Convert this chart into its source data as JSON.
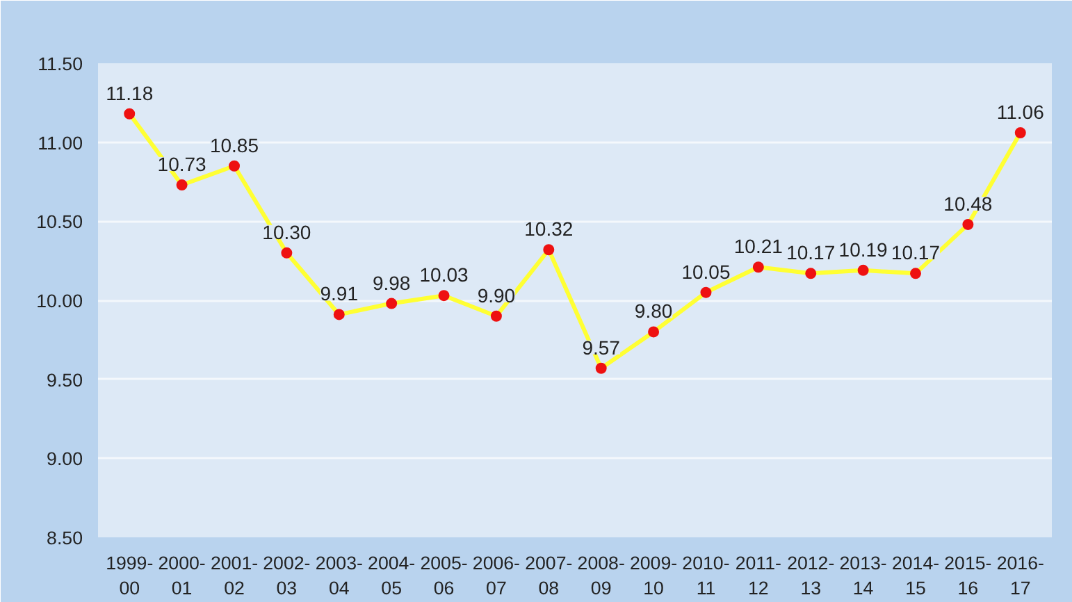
{
  "chart_data": {
    "type": "line",
    "categories": [
      "1999-00",
      "2000-01",
      "2001-02",
      "2002-03",
      "2003-04",
      "2004-05",
      "2005-06",
      "2006-07",
      "2007-08",
      "2008-09",
      "2009-10",
      "2010-11",
      "2011-12",
      "2012-13",
      "2013-14",
      "2014-15",
      "2015-16",
      "2016-17"
    ],
    "series": [
      {
        "color": "#ffff33",
        "values": [
          11.18,
          10.73,
          10.85,
          10.3,
          9.91,
          9.98,
          10.03,
          9.9,
          10.32,
          9.57,
          9.8,
          10.05,
          10.21,
          10.17,
          10.19,
          10.17,
          10.48,
          11.06
        ]
      }
    ],
    "value_labels": [
      "11.18",
      "10.73",
      "10.85",
      "10.30",
      "9.91",
      "9.98",
      "10.03",
      "9.90",
      "10.32",
      "9.57",
      "9.80",
      "10.05",
      "10.21",
      "10.17",
      "10.19",
      "10.17",
      "10.48",
      "11.06"
    ],
    "ylim": [
      8.5,
      11.5
    ],
    "yticks": [
      {
        "value": 8.5,
        "label": "8.50"
      },
      {
        "value": 9,
        "label": "9.00"
      },
      {
        "value": 9.5,
        "label": "9.50"
      },
      {
        "value": 10,
        "label": "10.00"
      },
      {
        "value": 10.5,
        "label": "10.50"
      },
      {
        "value": 11,
        "label": "11.00"
      },
      {
        "value": 11.5,
        "label": "11.50"
      }
    ],
    "grid": "y",
    "marker": "circle",
    "line_style": "solid"
  }
}
